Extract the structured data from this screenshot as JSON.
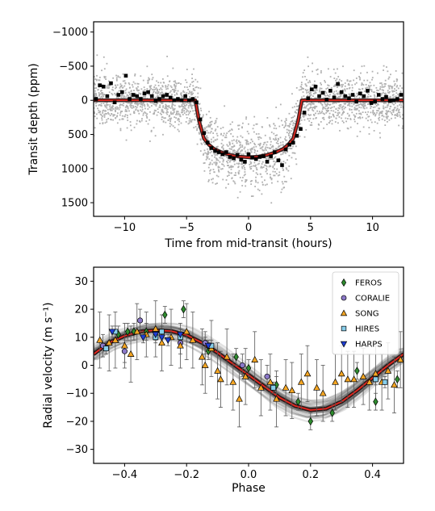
{
  "chart_data": [
    {
      "type": "scatter",
      "title": "",
      "xlabel": "Time from mid-transit (hours)",
      "ylabel": "Transit depth (ppm)",
      "xlim": [
        -12.5,
        12.5
      ],
      "ylim": [
        1700,
        -1150
      ],
      "y_inverted": true,
      "grid": false,
      "xticks": [
        -10,
        -5,
        0,
        5,
        10
      ],
      "xtick_labels": [
        "−10",
        "−5",
        "0",
        "5",
        "10"
      ],
      "yticks": [
        -1000,
        -500,
        0,
        500,
        1000,
        1500
      ],
      "ytick_labels": [
        "−1000",
        "−500",
        "0",
        "500",
        "1000",
        "1500"
      ],
      "series": [
        {
          "role": "unbinned_data",
          "style": "grey dots",
          "color": "#b0b0b0",
          "note": "several thousand unbinned points, scatter roughly ±400 ppm about the transit model"
        },
        {
          "role": "binned_data",
          "style": "black squares",
          "color": "#000000",
          "x": [
            -12.3,
            -12.0,
            -11.7,
            -11.4,
            -11.1,
            -10.8,
            -10.5,
            -10.2,
            -9.9,
            -9.6,
            -9.3,
            -9.0,
            -8.7,
            -8.4,
            -8.1,
            -7.8,
            -7.5,
            -7.2,
            -6.9,
            -6.6,
            -6.3,
            -6.0,
            -5.7,
            -5.4,
            -5.1,
            -4.8,
            -4.5,
            -4.2,
            -3.9,
            -3.6,
            -3.3,
            -3.0,
            -2.7,
            -2.4,
            -2.1,
            -1.8,
            -1.5,
            -1.2,
            -0.9,
            -0.6,
            -0.3,
            0.0,
            0.3,
            0.6,
            0.9,
            1.2,
            1.5,
            1.8,
            2.1,
            2.4,
            2.7,
            3.0,
            3.3,
            3.6,
            3.9,
            4.2,
            4.5,
            4.8,
            5.1,
            5.4,
            5.7,
            6.0,
            6.3,
            6.6,
            6.9,
            7.2,
            7.5,
            7.8,
            8.1,
            8.4,
            8.7,
            9.0,
            9.3,
            9.6,
            9.9,
            10.2,
            10.5,
            10.8,
            11.1,
            11.4,
            11.7,
            12.0,
            12.3
          ],
          "y": [
            -20,
            -220,
            -200,
            -60,
            -250,
            30,
            -80,
            -120,
            -360,
            -20,
            -80,
            -60,
            -20,
            -100,
            -120,
            -60,
            10,
            -20,
            -60,
            -80,
            -40,
            0,
            -20,
            0,
            -60,
            0,
            -20,
            30,
            280,
            480,
            620,
            700,
            740,
            760,
            790,
            760,
            830,
            850,
            800,
            870,
            900,
            790,
            840,
            860,
            830,
            820,
            900,
            820,
            760,
            880,
            950,
            720,
            650,
            620,
            520,
            420,
            180,
            -30,
            -160,
            -200,
            -60,
            -110,
            -10,
            -140,
            -40,
            -240,
            -120,
            -60,
            -30,
            -80,
            20,
            -100,
            -60,
            -140,
            40,
            20,
            -80,
            -20,
            -50,
            10,
            0,
            -20,
            -80
          ]
        },
        {
          "role": "transit_model",
          "style": "red line with dark band",
          "color": "#e8261e",
          "x": [
            -12.5,
            -4.3,
            -4.0,
            -3.6,
            -3.2,
            -2.8,
            -2.2,
            -1.5,
            -0.8,
            0.0,
            0.8,
            1.5,
            2.2,
            2.8,
            3.2,
            3.6,
            4.0,
            4.3,
            12.5
          ],
          "y": [
            0,
            0,
            300,
            560,
            650,
            710,
            760,
            800,
            825,
            835,
            825,
            800,
            760,
            710,
            650,
            560,
            300,
            0,
            0
          ]
        }
      ]
    },
    {
      "type": "scatter",
      "title": "",
      "xlabel": "Phase",
      "ylabel": "Radial velocity (m s⁻¹)",
      "xlim": [
        -0.5,
        0.5
      ],
      "ylim": [
        -35,
        35
      ],
      "grid": false,
      "xticks": [
        -0.4,
        -0.2,
        0.0,
        0.2,
        0.4
      ],
      "xtick_labels": [
        "−0.4",
        "−0.2",
        "0.0",
        "0.2",
        "0.4"
      ],
      "yticks": [
        -30,
        -20,
        -10,
        0,
        10,
        20,
        30
      ],
      "ytick_labels": [
        "−30",
        "−20",
        "−10",
        "0",
        "10",
        "20",
        "30"
      ],
      "legend_position": "top-right",
      "model": {
        "style": "red line with grey posterior samples",
        "color": "#e8261e",
        "x": [
          -0.5,
          -0.45,
          -0.4,
          -0.35,
          -0.3,
          -0.25,
          -0.2,
          -0.15,
          -0.1,
          -0.05,
          0.0,
          0.05,
          0.1,
          0.15,
          0.2,
          0.25,
          0.3,
          0.35,
          0.4,
          0.45,
          0.5
        ],
        "y": [
          4,
          8,
          10.5,
          12,
          12.5,
          12.2,
          10.8,
          8,
          4.5,
          0.5,
          -3.5,
          -7.5,
          -11.5,
          -14.5,
          -16,
          -15.5,
          -13,
          -9,
          -4.5,
          0,
          4
        ]
      },
      "series": [
        {
          "name": "FEROS",
          "marker": "diamond",
          "color": "#2e8b2e",
          "x": [
            -0.42,
            -0.39,
            -0.37,
            -0.33,
            -0.27,
            -0.21,
            -0.13,
            -0.04,
            0.0,
            0.09,
            0.16,
            0.2,
            0.27,
            0.35,
            0.41,
            0.48
          ],
          "y": [
            11,
            12,
            12,
            12,
            18,
            20,
            5,
            3,
            -1,
            -7,
            -13,
            -20,
            -17,
            -2,
            -13,
            -5
          ],
          "err": [
            3,
            3,
            3,
            3,
            3,
            3,
            3,
            3,
            3,
            3,
            3,
            3,
            3,
            3,
            3,
            3
          ]
        },
        {
          "name": "CORALIE",
          "marker": "circle",
          "color": "#8b79c9",
          "x": [
            -0.47,
            -0.4,
            -0.35,
            -0.22,
            -0.14,
            -0.02,
            0.06
          ],
          "y": [
            7,
            5,
            16,
            8,
            8,
            0,
            -4
          ],
          "err": [
            4,
            4,
            4,
            4,
            4,
            4,
            4
          ]
        },
        {
          "name": "SONG",
          "marker": "triangle-up",
          "color": "#f5a623",
          "x": [
            -0.48,
            -0.45,
            -0.43,
            -0.4,
            -0.38,
            -0.36,
            -0.33,
            -0.3,
            -0.28,
            -0.25,
            -0.22,
            -0.2,
            -0.18,
            -0.15,
            -0.14,
            -0.12,
            -0.1,
            -0.09,
            -0.07,
            -0.05,
            -0.03,
            -0.01,
            0.02,
            0.04,
            0.07,
            0.09,
            0.12,
            0.14,
            0.17,
            0.19,
            0.22,
            0.24,
            0.28,
            0.3,
            0.32,
            0.34,
            0.37,
            0.39,
            0.41,
            0.43,
            0.45,
            0.47,
            0.49
          ],
          "y": [
            9,
            8,
            9,
            7,
            4,
            12,
            11,
            13,
            8,
            10,
            7,
            12,
            9,
            3,
            0,
            6,
            -2,
            -5,
            3,
            -6,
            -12,
            -4,
            2,
            -8,
            -6,
            -12,
            -8,
            -9,
            -6,
            -3,
            -8,
            -10,
            -6,
            -3,
            -5,
            -5,
            -4,
            -6,
            -3,
            -6,
            -2,
            -7,
            2
          ],
          "err": [
            10,
            10,
            10,
            8,
            10,
            10,
            8,
            10,
            10,
            10,
            8,
            10,
            10,
            10,
            10,
            10,
            10,
            10,
            10,
            10,
            10,
            10,
            10,
            10,
            10,
            10,
            10,
            10,
            10,
            10,
            10,
            10,
            10,
            10,
            10,
            10,
            10,
            10,
            10,
            10,
            10,
            10,
            10
          ]
        },
        {
          "name": "HIRES",
          "marker": "square",
          "color": "#87ceeb",
          "x": [
            -0.46,
            -0.43,
            -0.3,
            -0.28,
            -0.22,
            -0.12,
            0.08,
            0.41,
            0.44
          ],
          "y": [
            6,
            12,
            10,
            12,
            10,
            7,
            -8,
            -5,
            -6
          ],
          "err": [
            2,
            2,
            2,
            2,
            2,
            2,
            2,
            2,
            2
          ]
        },
        {
          "name": "HARPS",
          "marker": "triangle-down",
          "color": "#1f3fd6",
          "x": [
            -0.44,
            -0.34,
            -0.3,
            -0.28,
            -0.26,
            -0.22,
            -0.13
          ],
          "y": [
            12,
            10,
            11,
            10,
            9,
            11,
            7
          ],
          "err": [
            2,
            2,
            2,
            2,
            2,
            2,
            2
          ]
        }
      ]
    }
  ]
}
